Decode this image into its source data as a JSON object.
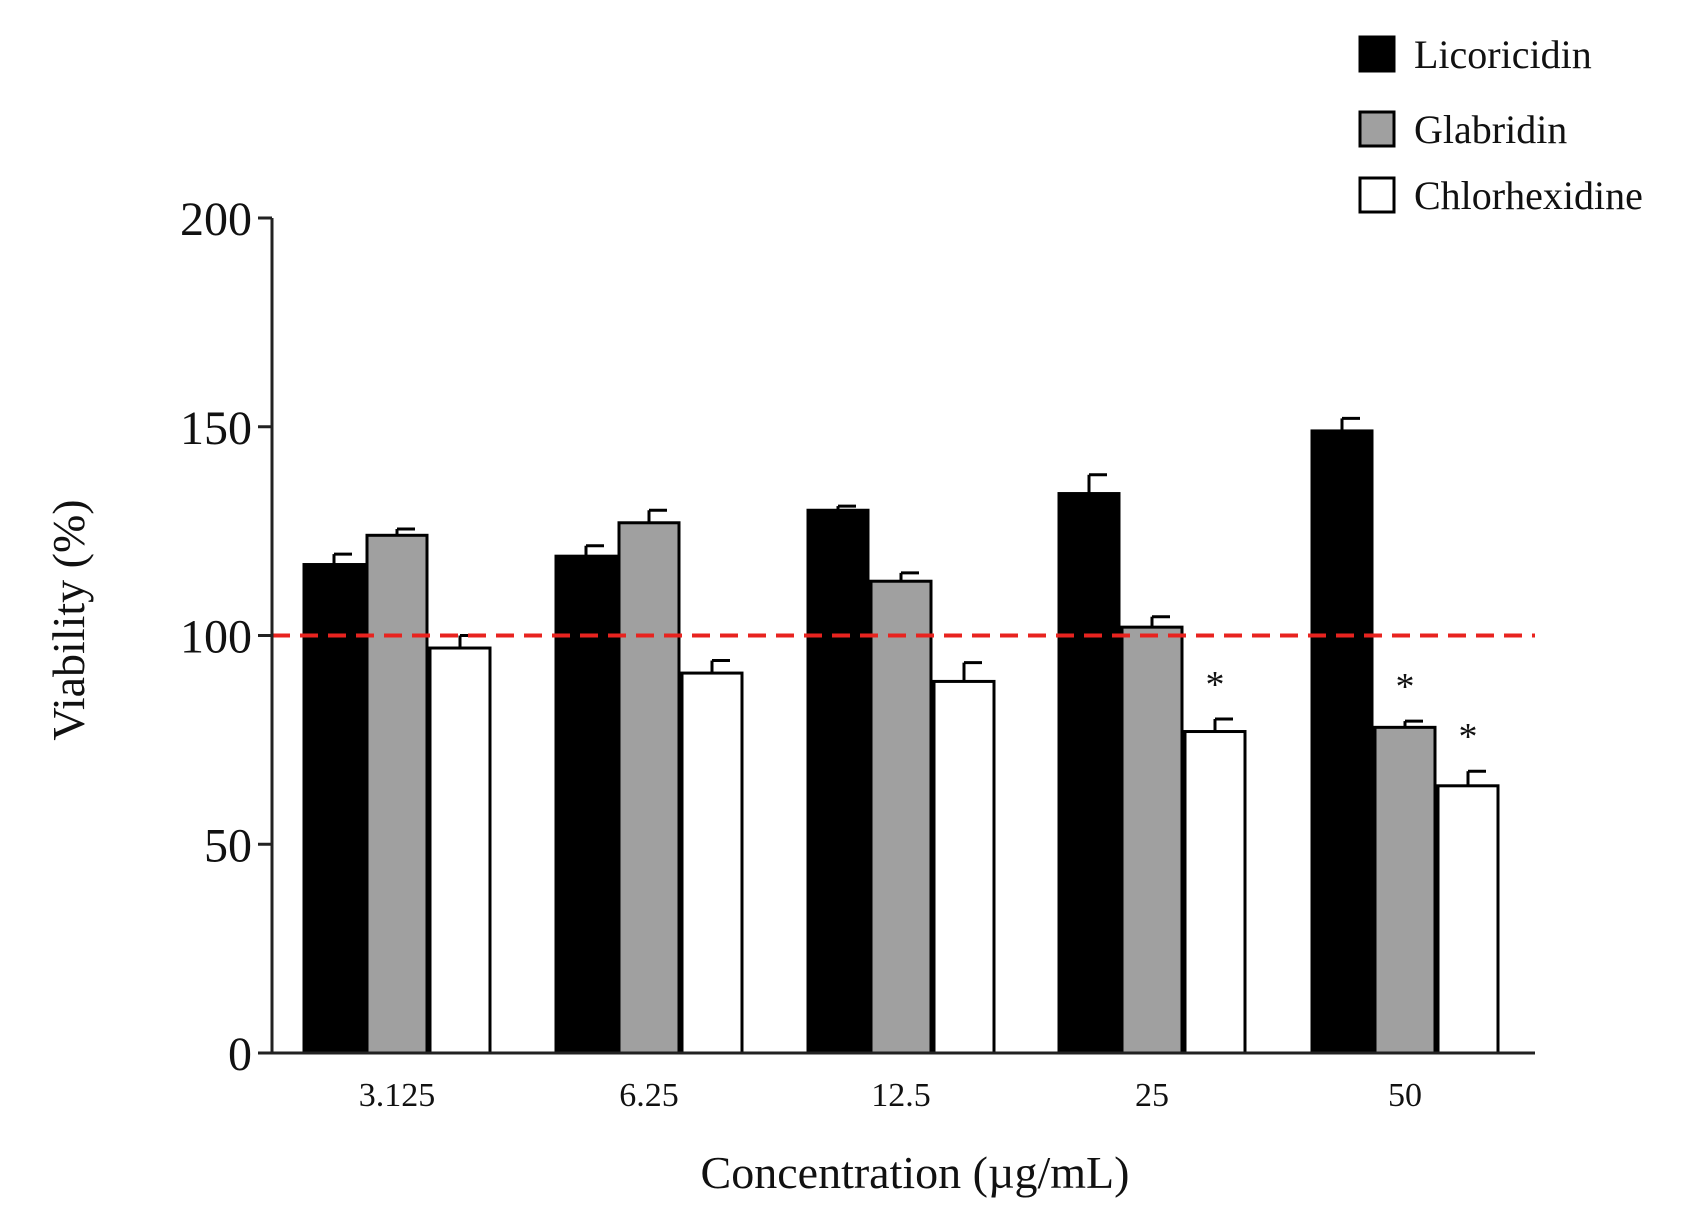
{
  "chart_data": {
    "type": "bar",
    "title": "",
    "xlabel": "Concentration (µg/mL)",
    "ylabel": "Viability (%)",
    "ylim": [
      0,
      200
    ],
    "yticks": [
      "0",
      "50",
      "100",
      "150",
      "200"
    ],
    "categories": [
      "3.125",
      "6.25",
      "12.5",
      "25",
      "50"
    ],
    "series": [
      {
        "name": "Licoricidin",
        "fill": "#000000",
        "values": [
          117,
          119,
          130,
          134,
          149
        ],
        "errors": [
          2.5,
          2.5,
          1,
          4.5,
          3
        ]
      },
      {
        "name": "Glabridin",
        "fill": "#a0a0a0",
        "values": [
          124,
          127,
          113,
          102,
          78
        ],
        "errors": [
          1.5,
          3,
          2,
          2.5,
          1.5
        ]
      },
      {
        "name": "Chlorhexidine",
        "fill": "#ffffff",
        "values": [
          97,
          91,
          89,
          77,
          64
        ],
        "errors": [
          3,
          3,
          4.5,
          3,
          3.5
        ]
      }
    ],
    "significance": [
      {
        "series": 2,
        "category": 3,
        "label": "*"
      },
      {
        "series": 1,
        "category": 4,
        "label": "*"
      },
      {
        "series": 2,
        "category": 4,
        "label": "*"
      }
    ],
    "reference_line": {
      "value": 100,
      "color": "#e8231f",
      "style": "dashed"
    },
    "legend_position": "top-right",
    "grid": false
  }
}
